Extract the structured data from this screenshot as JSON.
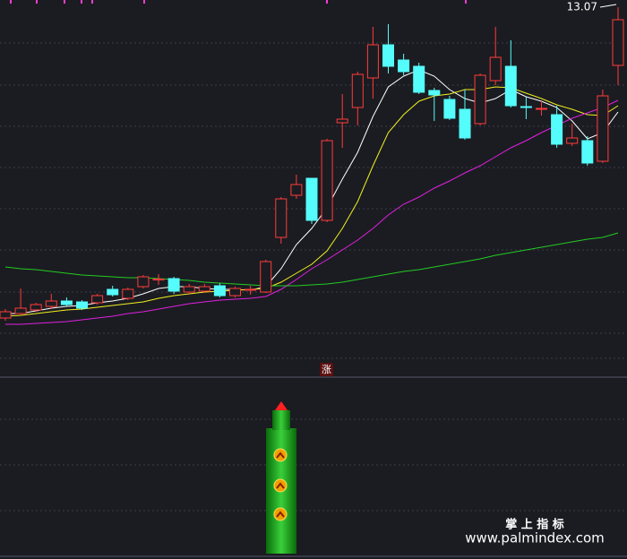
{
  "chart_data": {
    "type": "candlestick",
    "open": [
      6.13,
      6.23,
      6.31,
      6.39,
      6.51,
      6.49,
      6.47,
      6.77,
      6.57,
      6.83,
      6.99,
      7.01,
      6.71,
      6.73,
      6.85,
      6.63,
      6.75,
      6.71,
      7.93,
      8.87,
      9.25,
      8.31,
      10.49,
      10.83,
      11.49,
      12.23,
      11.89,
      11.75,
      11.21,
      11.01,
      10.79,
      10.47,
      11.43,
      11.75,
      10.85,
      10.81,
      10.67,
      10.03,
      10.09,
      9.63,
      11.77
    ],
    "high": [
      6.33,
      6.79,
      6.47,
      6.67,
      6.59,
      6.53,
      6.67,
      6.85,
      6.81,
      7.09,
      7.11,
      7.05,
      6.89,
      6.89,
      6.91,
      6.83,
      6.85,
      7.43,
      8.83,
      9.33,
      9.25,
      10.13,
      11.13,
      11.63,
      12.63,
      12.69,
      12.03,
      11.83,
      11.27,
      11.09,
      11.23,
      11.59,
      12.63,
      12.33,
      11.07,
      10.97,
      10.87,
      10.47,
      10.19,
      11.23,
      13.07
    ],
    "low": [
      6.07,
      6.19,
      6.27,
      6.33,
      6.39,
      6.31,
      6.43,
      6.61,
      6.53,
      6.79,
      6.87,
      6.67,
      6.67,
      6.69,
      6.59,
      6.59,
      6.65,
      6.69,
      7.79,
      8.79,
      8.23,
      8.27,
      9.93,
      10.43,
      11.03,
      11.59,
      11.55,
      11.13,
      10.53,
      10.55,
      10.11,
      10.43,
      11.33,
      10.83,
      10.57,
      10.65,
      9.93,
      9.97,
      9.53,
      9.59,
      11.33
    ],
    "close": [
      6.27,
      6.35,
      6.43,
      6.51,
      6.43,
      6.35,
      6.63,
      6.65,
      6.77,
      7.05,
      7.0,
      6.73,
      6.83,
      6.83,
      6.63,
      6.79,
      6.77,
      7.39,
      8.79,
      9.11,
      8.31,
      10.09,
      10.57,
      11.57,
      12.23,
      11.75,
      11.63,
      11.17,
      11.11,
      10.59,
      10.15,
      11.55,
      11.95,
      10.87,
      10.83,
      10.81,
      10.01,
      10.15,
      9.59,
      11.09,
      12.79
    ],
    "up_color": "#ff3b3b",
    "down_color": "#54fcfc",
    "lines": [
      {
        "color": "#ffffff",
        "values": [
          6.23,
          6.23,
          6.29,
          6.35,
          6.39,
          6.41,
          6.47,
          6.51,
          6.57,
          6.67,
          6.79,
          6.83,
          6.83,
          6.79,
          6.77,
          6.77,
          6.75,
          6.83,
          7.23,
          7.77,
          8.13,
          8.59,
          9.23,
          9.83,
          10.63,
          11.29,
          11.53,
          11.67,
          11.53,
          11.23,
          11.03,
          10.93,
          11.03,
          11.23,
          11.07,
          10.97,
          10.83,
          10.53,
          10.13,
          10.27,
          10.73
        ]
      },
      {
        "color": "#f0f020",
        "values": [
          6.17,
          6.19,
          6.23,
          6.27,
          6.31,
          6.33,
          6.37,
          6.41,
          6.45,
          6.49,
          6.57,
          6.63,
          6.67,
          6.71,
          6.73,
          6.75,
          6.77,
          6.79,
          6.93,
          7.13,
          7.33,
          7.63,
          8.13,
          8.73,
          9.53,
          10.27,
          10.67,
          10.97,
          11.09,
          11.13,
          11.23,
          11.23,
          11.29,
          11.27,
          11.15,
          11.03,
          10.89,
          10.79,
          10.67,
          10.65,
          10.87
        ]
      },
      {
        "color": "#e020e0",
        "values": [
          5.99,
          5.99,
          6.01,
          6.03,
          6.05,
          6.09,
          6.13,
          6.17,
          6.23,
          6.27,
          6.33,
          6.39,
          6.45,
          6.49,
          6.53,
          6.55,
          6.57,
          6.61,
          6.77,
          6.99,
          7.23,
          7.43,
          7.65,
          7.87,
          8.13,
          8.43,
          8.67,
          8.83,
          9.03,
          9.19,
          9.37,
          9.53,
          9.73,
          9.93,
          10.09,
          10.27,
          10.43,
          10.59,
          10.71,
          10.83,
          10.99
        ]
      },
      {
        "color": "#22cc22",
        "values": [
          7.27,
          7.23,
          7.21,
          7.17,
          7.13,
          7.09,
          7.07,
          7.05,
          7.03,
          7.03,
          7.01,
          6.99,
          6.97,
          6.93,
          6.91,
          6.89,
          6.87,
          6.85,
          6.85,
          6.85,
          6.87,
          6.89,
          6.93,
          6.99,
          7.05,
          7.11,
          7.17,
          7.21,
          7.27,
          7.33,
          7.39,
          7.45,
          7.53,
          7.59,
          7.65,
          7.71,
          7.77,
          7.83,
          7.89,
          7.93,
          8.03
        ]
      }
    ],
    "ylim": [
      5.23,
      13.23
    ],
    "signal_label": "涨"
  },
  "watermark": {
    "title": "掌 上 指 标",
    "url": "www.palmindex.com"
  }
}
